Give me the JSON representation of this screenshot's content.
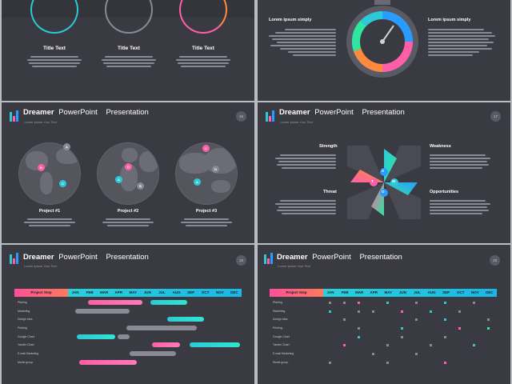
{
  "slide1": {
    "items": [
      {
        "title": "Title Text",
        "body": "Lorem Ipsum has been the industry's standard dummy text ever since the 1500s, when an unknown printer took a galley of type and scrambled it to make a"
      },
      {
        "title": "Title Text",
        "body": "Lorem Ipsum has been the industry's standard dummy text ever since the 1500s, when an unknown printer took a galley of type and scrambled it to make a"
      },
      {
        "title": "Title Text",
        "body": "Lorem Ipsum has been the industry's standard dummy text ever since the 1500s, when an unknown printer took a galley of type and scrambled it to make a"
      }
    ],
    "ring_colors": [
      "#2ec9d6",
      "#8a8a94",
      "#ff5fa8"
    ]
  },
  "slide2": {
    "left_title": "Lorem ipsum simply",
    "right_title": "Lorem ipsum simply",
    "left_body": "Lorem Ipsum is simply dummy text of the printing and typesetting industry. Lorem Ipsum has been the industry's standard dummy text ever since the 1500s, when an unknown printer took a galley of type and scrambled it to make a type specimen book. It has survived not only five centuries.",
    "right_body": "Lorem Ipsum is simply dummy text of the printing and typesetting industry. Lorem Ipsum has been the industry's standard dummy text ever since the 1500s, when an unknown printer took a galley of type and scrambled it to make a type specimen book. It has survived not only five centuries."
  },
  "header": {
    "brand": "Dreamer",
    "product": "PowerPoint",
    "presentation": "Presentation",
    "subtitle": "Lorem Ipsum Your Text"
  },
  "slide3": {
    "page": "16",
    "projects": [
      {
        "title": "Project #1",
        "body": "Lorem Ipsum has been the industry's standard dummy text ever since the 1500s, when an unknown"
      },
      {
        "title": "Project #2",
        "body": "Lorem Ipsum has been the industry's standard dummy text ever since the 1500s, when an unknown"
      },
      {
        "title": "Project #3",
        "body": "Lorem Ipsum has been the industry's standard dummy text ever since the 1500s, when an unknown"
      }
    ],
    "pins": [
      "A",
      "B",
      "C",
      "D",
      "A",
      "B",
      "C",
      "D",
      "A",
      "B",
      "C"
    ]
  },
  "slide4": {
    "page": "17",
    "strength": "Strength",
    "weakness": "Weakness",
    "threat": "Threat",
    "opportunities": "Opportunities",
    "letters": [
      "S",
      "W",
      "T",
      "O"
    ],
    "body": "Lorem Ipsum is simply dummy text of the printing and typesetting industry. Lorem Ipsum has been the industry's standard dummy text ever since the 1500s, when an unknown printer took a galley of type and scrambled it to make a type specimen book."
  },
  "slide5": {
    "page": "18",
    "head": "Project Step",
    "months": [
      "JAN",
      "FEB",
      "MAR",
      "APR",
      "MAY",
      "JUN",
      "JUL",
      "AUG",
      "SEP",
      "OCT",
      "NOV",
      "DEC"
    ],
    "rows": [
      "Planing",
      "Marketing",
      "Design idea",
      "Printing",
      "Google Chart",
      "Yander Chart",
      "E-mail Marketing",
      "Movie group"
    ]
  },
  "slide6": {
    "page": "19",
    "head": "Project Step",
    "months": [
      "JAN",
      "FEB",
      "MAR",
      "APR",
      "MAY",
      "JUN",
      "JUL",
      "AUG",
      "SEP",
      "OCT",
      "NOV",
      "DEC"
    ],
    "rows": [
      "Planing",
      "Marketing",
      "Design idea",
      "Printing",
      "Google Chart",
      "Yander Chart",
      "E-mail Marketing",
      "Movie group"
    ]
  },
  "colors": {
    "cyan": "#2ec9d6",
    "pink": "#ff5fa8",
    "gray": "#8a8a94",
    "green": "#2ee6a0",
    "blue": "#2a9cff",
    "orange": "#ff8a3d"
  }
}
